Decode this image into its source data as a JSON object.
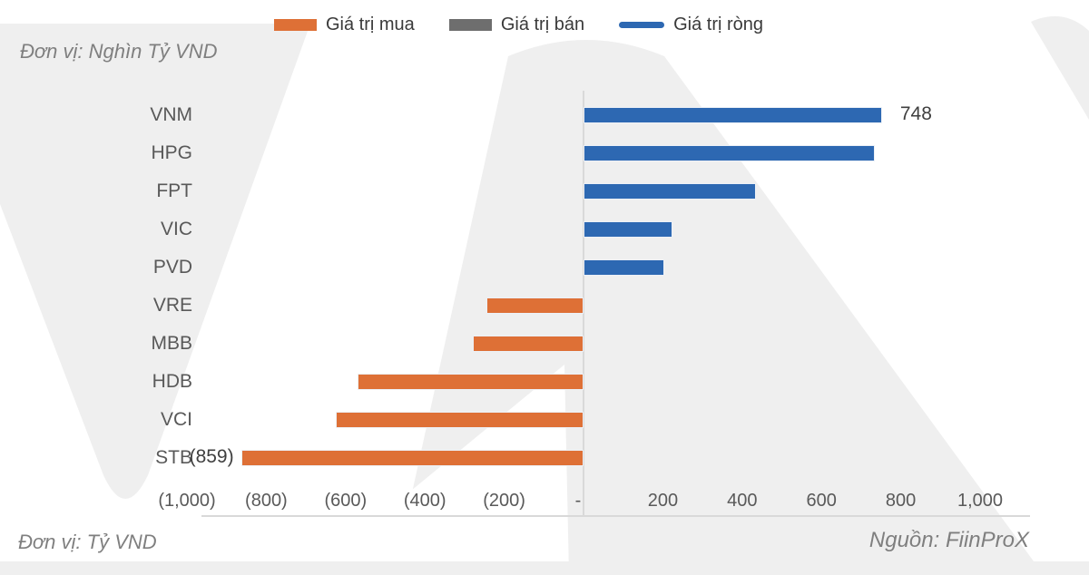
{
  "header": {
    "unit_top": "Đơn vị: Nghìn Tỷ VND",
    "unit_bottom": "Đơn vị: Tỷ VND",
    "source": "Nguồn: FiinProX"
  },
  "legend": [
    {
      "name": "Giá trị mua",
      "color": "#DE7036",
      "swatch": "rect"
    },
    {
      "name": "Giá trị bán",
      "color": "#6E6E6E",
      "swatch": "rect"
    },
    {
      "name": "Giá trị ròng",
      "color": "#2D68B2",
      "swatch": "line"
    }
  ],
  "chart_data": {
    "type": "bar",
    "orientation": "horizontal",
    "title": "",
    "xlabel": "Tỷ VND",
    "ylabel": "",
    "xlim": [
      -1150,
      1150
    ],
    "grid": false,
    "legend_position": "top",
    "categories": [
      "VNM",
      "HPG",
      "FPT",
      "VIC",
      "PVD",
      "VRE",
      "MBB",
      "HDB",
      "VCI",
      "STB"
    ],
    "points": [
      {
        "category": "VNM",
        "value": 748,
        "series": "Giá trị ròng",
        "label": "748"
      },
      {
        "category": "HPG",
        "value": 730,
        "series": "Giá trị ròng"
      },
      {
        "category": "FPT",
        "value": 430,
        "series": "Giá trị ròng"
      },
      {
        "category": "VIC",
        "value": 220,
        "series": "Giá trị ròng"
      },
      {
        "category": "PVD",
        "value": 200,
        "series": "Giá trị ròng"
      },
      {
        "category": "VRE",
        "value": -240,
        "series": "Giá trị mua"
      },
      {
        "category": "MBB",
        "value": -275,
        "series": "Giá trị mua"
      },
      {
        "category": "HDB",
        "value": -565,
        "series": "Giá trị mua"
      },
      {
        "category": "VCI",
        "value": -620,
        "series": "Giá trị mua"
      },
      {
        "category": "STB",
        "value": -859,
        "series": "Giá trị mua",
        "label": "(859)"
      }
    ],
    "series_colors": {
      "Giá trị mua": "#DE7036",
      "Giá trị bán": "#6E6E6E",
      "Giá trị ròng": "#2D68B2"
    },
    "x_ticks": [
      {
        "label": "(1,000)",
        "value": -1000
      },
      {
        "label": "(800)",
        "value": -800
      },
      {
        "label": "(600)",
        "value": -600
      },
      {
        "label": "(400)",
        "value": -400
      },
      {
        "label": "(200)",
        "value": -200
      },
      {
        "label": "-",
        "value": 0
      },
      {
        "label": "200",
        "value": 200
      },
      {
        "label": "400",
        "value": 400
      },
      {
        "label": "600",
        "value": 600
      },
      {
        "label": "800",
        "value": 800
      },
      {
        "label": "1,000",
        "value": 1000
      }
    ]
  }
}
